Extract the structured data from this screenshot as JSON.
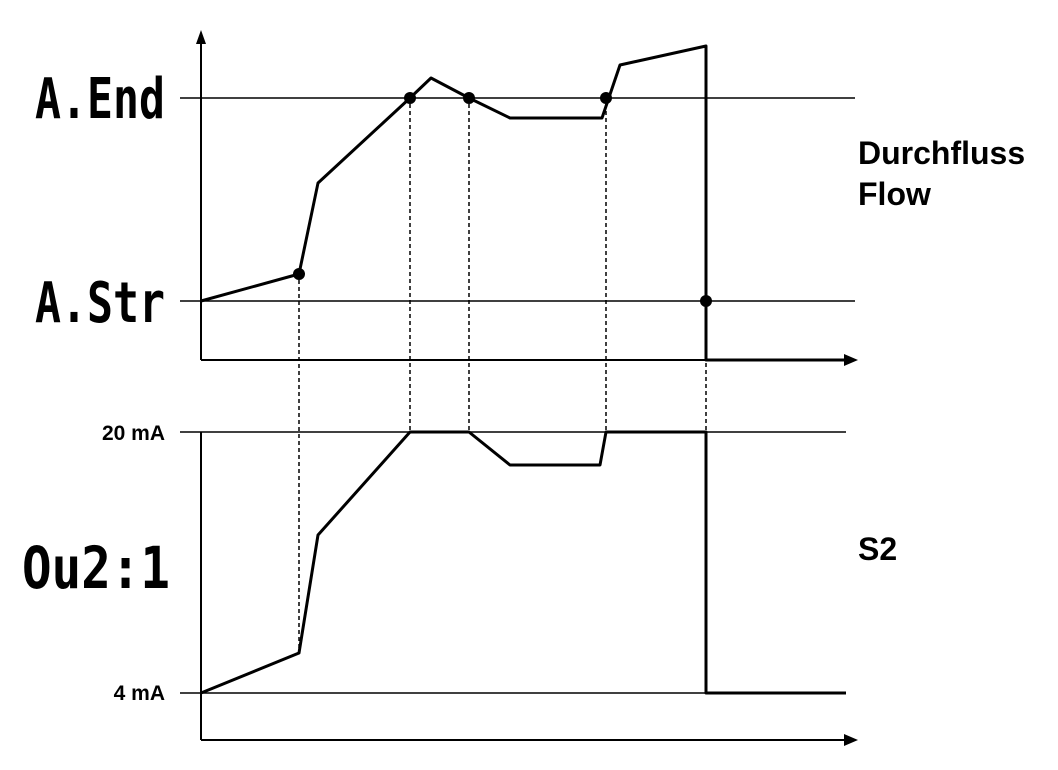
{
  "top_chart": {
    "thresholds": {
      "end": "A.End",
      "start": "A.Str"
    },
    "label_line1": "Durchfluss",
    "label_line2": "Flow"
  },
  "bottom_chart": {
    "levels": {
      "high": "20 mA",
      "low": "4 mA"
    },
    "output_code": "Ou2:1",
    "label": "S2"
  },
  "colors": {
    "line": "#000000",
    "background": "#ffffff"
  }
}
